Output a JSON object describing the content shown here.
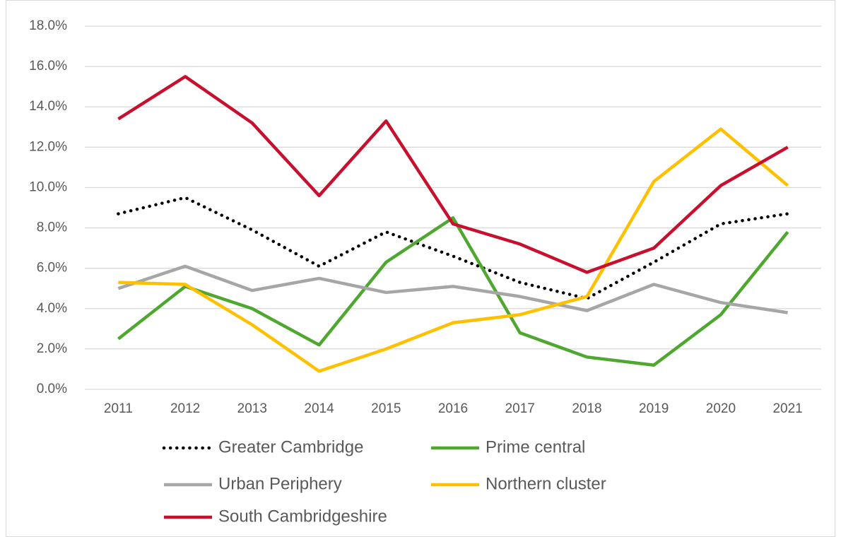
{
  "chart_data": {
    "type": "line",
    "categories": [
      "2011",
      "2012",
      "2013",
      "2014",
      "2015",
      "2016",
      "2017",
      "2018",
      "2019",
      "2020",
      "2021"
    ],
    "series": [
      {
        "name": "Greater Cambridge",
        "color": "#000000",
        "dash": "dotted",
        "values": [
          8.7,
          9.5,
          7.9,
          6.1,
          7.8,
          6.6,
          5.3,
          4.5,
          6.3,
          8.2,
          8.7
        ]
      },
      {
        "name": "Prime central",
        "color": "#4ea72e",
        "values": [
          2.5,
          5.1,
          4.0,
          2.2,
          6.3,
          8.5,
          2.8,
          1.6,
          1.2,
          3.7,
          7.8
        ]
      },
      {
        "name": "Urban Periphery",
        "color": "#a6a6a6",
        "values": [
          5.0,
          6.1,
          4.9,
          5.5,
          4.8,
          5.1,
          4.6,
          3.9,
          5.2,
          4.3,
          3.8
        ]
      },
      {
        "name": "Northern cluster",
        "color": "#ffc000",
        "values": [
          5.3,
          5.2,
          3.2,
          0.9,
          2.0,
          3.3,
          3.7,
          4.6,
          10.3,
          12.9,
          10.1
        ]
      },
      {
        "name": "South Cambridgeshire",
        "color": "#c8102e",
        "values": [
          13.4,
          15.5,
          13.2,
          9.6,
          13.3,
          8.2,
          7.2,
          5.8,
          7.0,
          10.1,
          12.0
        ]
      }
    ],
    "ylim": [
      0,
      18
    ],
    "yticks": [
      {
        "value": 0,
        "label": "0.0%"
      },
      {
        "value": 2,
        "label": "2.0%"
      },
      {
        "value": 4,
        "label": "4.0%"
      },
      {
        "value": 6,
        "label": "6.0%"
      },
      {
        "value": 8,
        "label": "8.0%"
      },
      {
        "value": 10,
        "label": "10.0%"
      },
      {
        "value": 12,
        "label": "12.0%"
      },
      {
        "value": 14,
        "label": "14.0%"
      },
      {
        "value": 16,
        "label": "16.0%"
      },
      {
        "value": 18,
        "label": "18.0%"
      }
    ],
    "grid": true,
    "legend": "bottom"
  }
}
